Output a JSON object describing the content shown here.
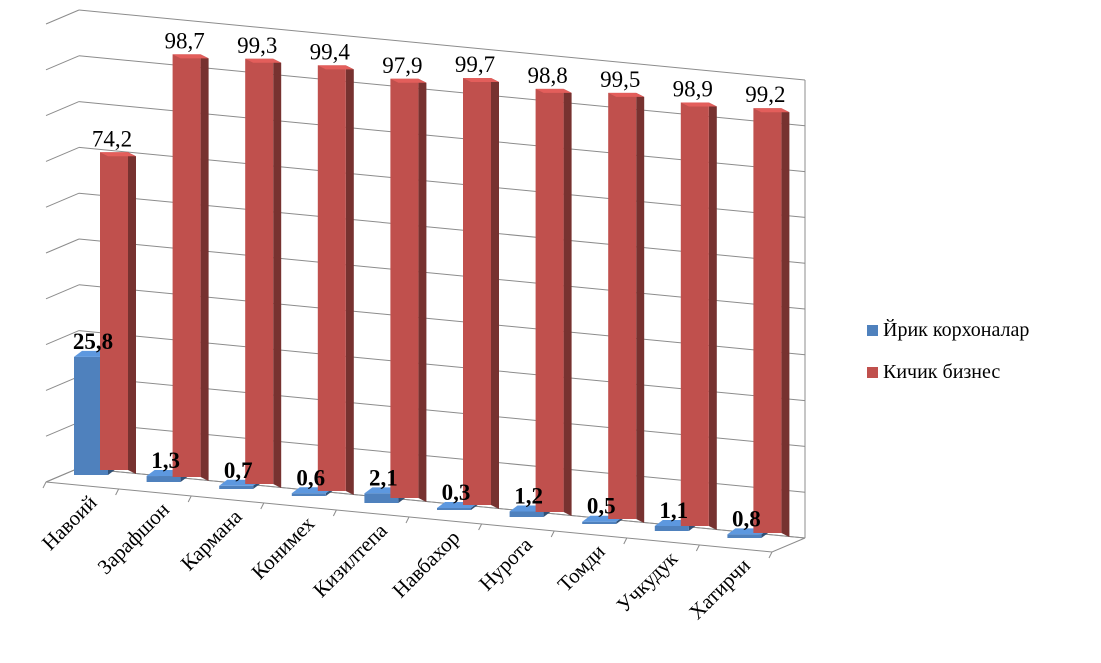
{
  "chart_data": {
    "type": "bar",
    "categories": [
      "Навоий",
      "Зарафшон",
      "Кармана",
      "Конимех",
      "Кизилтепа",
      "Навбахор",
      "Нурота",
      "Томди",
      "Учкудук",
      "Хатирчи"
    ],
    "series": [
      {
        "name": "Йрик корхоналар",
        "values": [
          25.8,
          1.3,
          0.7,
          0.6,
          2.1,
          0.3,
          1.2,
          0.5,
          1.1,
          0.8
        ],
        "labels": [
          "25,8",
          "1,3",
          "0,7",
          "0,6",
          "2,1",
          "0,3",
          "1,2",
          "0,5",
          "1,1",
          "0,8"
        ],
        "color": "#4f81bd"
      },
      {
        "name": "Кичик бизнес",
        "values": [
          74.2,
          98.7,
          99.3,
          99.4,
          97.9,
          99.7,
          98.8,
          99.5,
          98.9,
          99.2
        ],
        "labels": [
          "74,2",
          "98,7",
          "99,3",
          "99,4",
          "97,9",
          "99,7",
          "98,8",
          "99,5",
          "98,9",
          "99,2"
        ],
        "color": "#c0504d"
      }
    ],
    "ylim": [
      0,
      100
    ],
    "grid": true,
    "legend_position": "right"
  }
}
